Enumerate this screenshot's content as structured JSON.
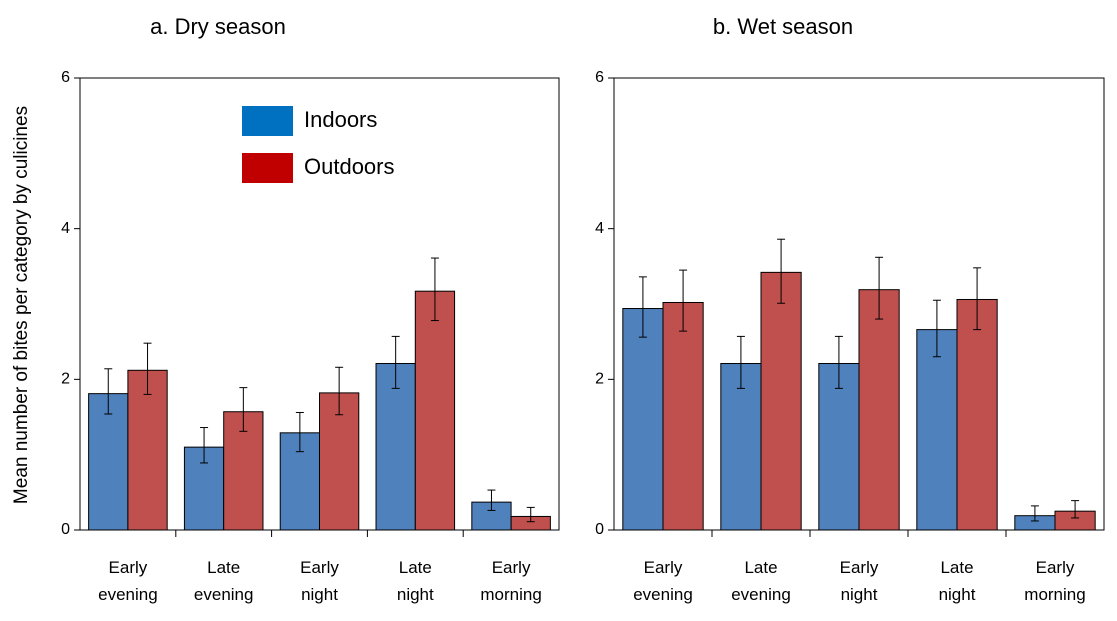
{
  "figure": {
    "ylabel": "Mean number of bites per category by culicines"
  },
  "chart_data": [
    {
      "type": "bar",
      "title": "a.   Dry season",
      "ylabel": "Mean number of bites per category by culicines",
      "xlabel": "",
      "ylim": [
        0,
        6
      ],
      "yticks": [
        "0",
        "2",
        "4",
        "6"
      ],
      "grid": false,
      "legend": "top-center",
      "categories": [
        [
          "Early",
          "evening"
        ],
        [
          "Late",
          "evening"
        ],
        [
          "Early",
          "night"
        ],
        [
          "Late",
          "night"
        ],
        [
          "Early",
          "morning"
        ]
      ],
      "series": [
        {
          "name": "Indoors",
          "color": "#4f81bd",
          "values": [
            1.81,
            1.1,
            1.29,
            2.21,
            0.37
          ],
          "err_low": [
            1.54,
            0.89,
            1.04,
            1.88,
            0.26
          ],
          "err_high": [
            2.14,
            1.36,
            1.56,
            2.57,
            0.53
          ]
        },
        {
          "name": "Outdoors",
          "color": "#c0504d",
          "values": [
            2.12,
            1.57,
            1.82,
            3.17,
            0.18
          ],
          "err_low": [
            1.8,
            1.31,
            1.53,
            2.78,
            0.11
          ],
          "err_high": [
            2.48,
            1.89,
            2.16,
            3.61,
            0.3
          ]
        }
      ]
    },
    {
      "type": "bar",
      "title": "b. Wet season",
      "ylabel": "",
      "xlabel": "",
      "ylim": [
        0,
        6
      ],
      "yticks": [
        "0",
        "2",
        "4",
        "6"
      ],
      "grid": false,
      "categories": [
        [
          "Early",
          "evening"
        ],
        [
          "Late",
          "evening"
        ],
        [
          "Early",
          "night"
        ],
        [
          "Late",
          "night"
        ],
        [
          "Early",
          "morning"
        ]
      ],
      "series": [
        {
          "name": "Indoors",
          "color": "#4f81bd",
          "values": [
            2.94,
            2.21,
            2.21,
            2.66,
            0.19
          ],
          "err_low": [
            2.56,
            1.88,
            1.88,
            2.3,
            0.12
          ],
          "err_high": [
            3.36,
            2.57,
            2.57,
            3.05,
            0.32
          ]
        },
        {
          "name": "Outdoors",
          "color": "#c0504d",
          "values": [
            3.02,
            3.42,
            3.19,
            3.06,
            0.25
          ],
          "err_low": [
            2.64,
            3.01,
            2.8,
            2.66,
            0.16
          ],
          "err_high": [
            3.45,
            3.86,
            3.62,
            3.48,
            0.39
          ]
        }
      ]
    }
  ],
  "legend": {
    "items": [
      {
        "label": "Indoors",
        "color": "#0070c0"
      },
      {
        "label": "Outdoors",
        "color": "#c00000"
      }
    ]
  }
}
